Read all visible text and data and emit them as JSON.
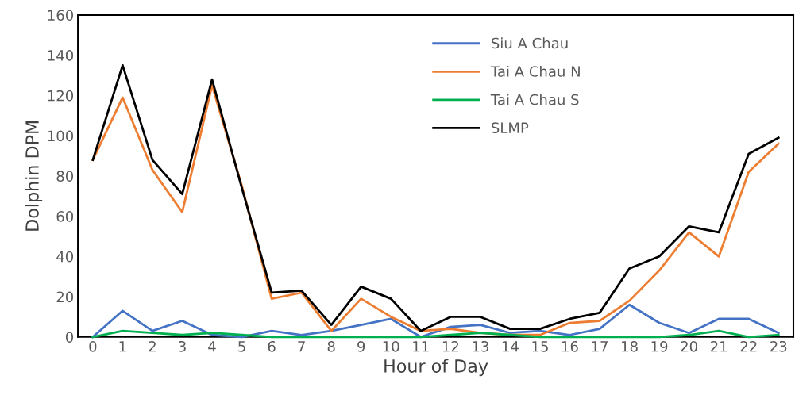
{
  "chart_data": {
    "type": "line",
    "xlabel": "Hour of Day",
    "ylabel": "Dolphin DPM",
    "categories": [
      "0",
      "1",
      "2",
      "3",
      "4",
      "5",
      "6",
      "7",
      "8",
      "9",
      "10",
      "11",
      "12",
      "13",
      "14",
      "15",
      "16",
      "17",
      "18",
      "19",
      "20",
      "21",
      "22",
      "23"
    ],
    "series": [
      {
        "name": "Siu A Chau",
        "color": "#4472c4",
        "values": [
          0,
          13,
          3,
          8,
          1,
          0,
          3,
          1,
          3,
          6,
          9,
          0,
          5,
          6,
          2,
          3,
          1,
          4,
          16,
          7,
          2,
          9,
          9,
          2
        ]
      },
      {
        "name": "Tai A Chau N",
        "color": "#ed7d31",
        "values": [
          88,
          119,
          83,
          62,
          125,
          75,
          19,
          22,
          3,
          19,
          10,
          3,
          4,
          2,
          1,
          1,
          7,
          8,
          18,
          33,
          52,
          40,
          82,
          96
        ]
      },
      {
        "name": "Tai A Chau S",
        "color": "#00b050",
        "values": [
          0,
          3,
          2,
          1,
          2,
          1,
          0,
          0,
          0,
          0,
          0,
          0,
          1,
          2,
          1,
          0,
          0,
          0,
          0,
          0,
          1,
          3,
          0,
          1
        ]
      },
      {
        "name": "SLMP",
        "color": "#000000",
        "values": [
          88,
          135,
          88,
          71,
          128,
          74,
          22,
          23,
          6,
          25,
          19,
          3,
          10,
          10,
          4,
          4,
          9,
          12,
          34,
          40,
          55,
          52,
          91,
          99
        ]
      }
    ],
    "ylim": [
      0,
      160
    ],
    "yticks": [
      0,
      20,
      40,
      60,
      80,
      100,
      120,
      140,
      160
    ],
    "grid": false,
    "legend": "top",
    "marker": "none",
    "line_style": "solid"
  }
}
